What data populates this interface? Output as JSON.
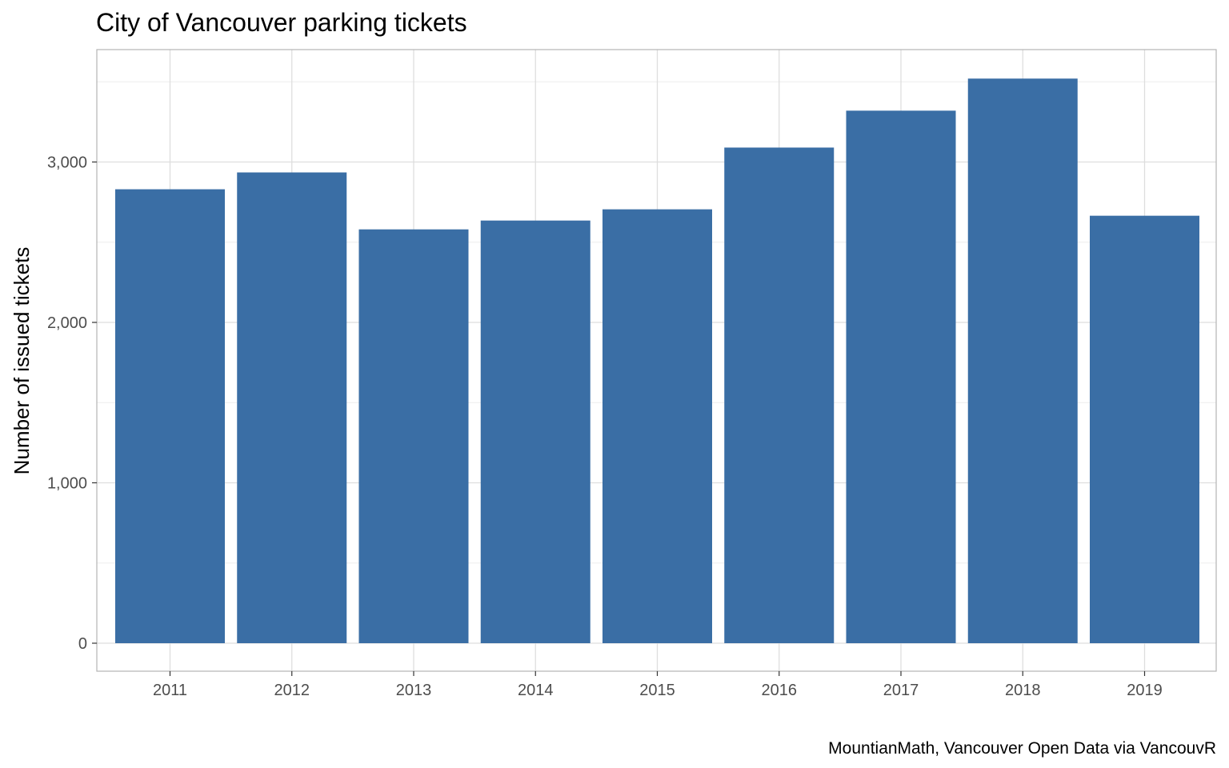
{
  "chart_data": {
    "type": "bar",
    "title": "City of Vancouver parking tickets",
    "xlabel": "",
    "ylabel": "Number of issued tickets",
    "caption": "MountianMath, Vancouver Open Data via VancouvR",
    "categories": [
      "2011",
      "2012",
      "2013",
      "2014",
      "2015",
      "2016",
      "2017",
      "2018",
      "2019"
    ],
    "values": [
      2830,
      2935,
      2580,
      2635,
      2705,
      3090,
      3320,
      3520,
      2665
    ],
    "ylim": [
      -30,
      3700
    ],
    "yticks": [
      0,
      1000,
      2000,
      3000
    ],
    "ytick_labels": [
      "0",
      "1,000",
      "2,000",
      "3,000"
    ],
    "grid": true,
    "bar_color": "#3a6ea5",
    "panel_border_color": "#b3b3b3",
    "grid_color": "#dedede"
  }
}
